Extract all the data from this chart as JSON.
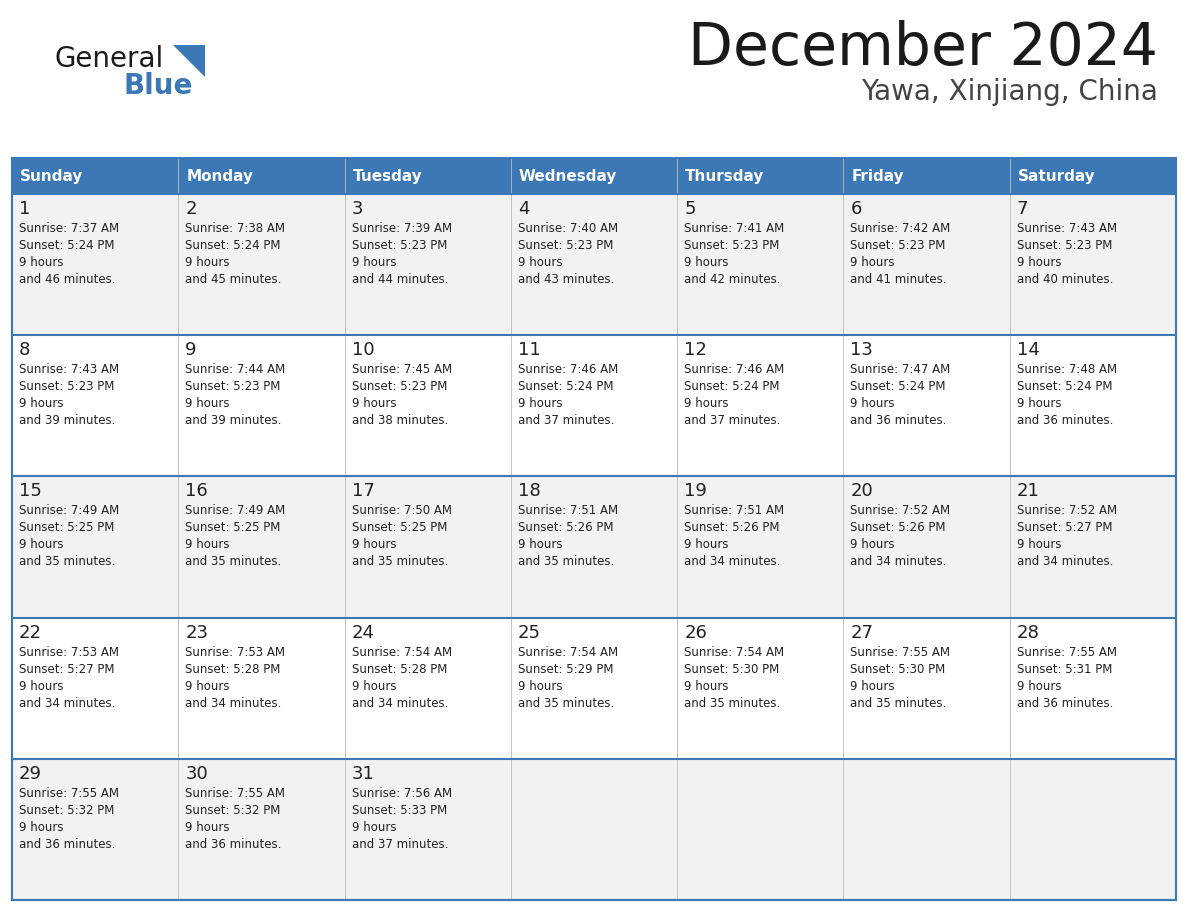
{
  "title": "December 2024",
  "subtitle": "Yawa, Xinjiang, China",
  "header_color": "#3c78b5",
  "header_text_color": "#ffffff",
  "cell_bg_even": "#f2f2f2",
  "cell_bg_odd": "#ffffff",
  "border_color": "#3c78b5",
  "grid_line_color": "#cccccc",
  "text_color": "#222222",
  "day_names": [
    "Sunday",
    "Monday",
    "Tuesday",
    "Wednesday",
    "Thursday",
    "Friday",
    "Saturday"
  ],
  "weeks": [
    [
      {
        "day": 1,
        "sunrise": "7:37 AM",
        "sunset": "5:24 PM",
        "daylight": "9 hours and 46 minutes."
      },
      {
        "day": 2,
        "sunrise": "7:38 AM",
        "sunset": "5:24 PM",
        "daylight": "9 hours and 45 minutes."
      },
      {
        "day": 3,
        "sunrise": "7:39 AM",
        "sunset": "5:23 PM",
        "daylight": "9 hours and 44 minutes."
      },
      {
        "day": 4,
        "sunrise": "7:40 AM",
        "sunset": "5:23 PM",
        "daylight": "9 hours and 43 minutes."
      },
      {
        "day": 5,
        "sunrise": "7:41 AM",
        "sunset": "5:23 PM",
        "daylight": "9 hours and 42 minutes."
      },
      {
        "day": 6,
        "sunrise": "7:42 AM",
        "sunset": "5:23 PM",
        "daylight": "9 hours and 41 minutes."
      },
      {
        "day": 7,
        "sunrise": "7:43 AM",
        "sunset": "5:23 PM",
        "daylight": "9 hours and 40 minutes."
      }
    ],
    [
      {
        "day": 8,
        "sunrise": "7:43 AM",
        "sunset": "5:23 PM",
        "daylight": "9 hours and 39 minutes."
      },
      {
        "day": 9,
        "sunrise": "7:44 AM",
        "sunset": "5:23 PM",
        "daylight": "9 hours and 39 minutes."
      },
      {
        "day": 10,
        "sunrise": "7:45 AM",
        "sunset": "5:23 PM",
        "daylight": "9 hours and 38 minutes."
      },
      {
        "day": 11,
        "sunrise": "7:46 AM",
        "sunset": "5:24 PM",
        "daylight": "9 hours and 37 minutes."
      },
      {
        "day": 12,
        "sunrise": "7:46 AM",
        "sunset": "5:24 PM",
        "daylight": "9 hours and 37 minutes."
      },
      {
        "day": 13,
        "sunrise": "7:47 AM",
        "sunset": "5:24 PM",
        "daylight": "9 hours and 36 minutes."
      },
      {
        "day": 14,
        "sunrise": "7:48 AM",
        "sunset": "5:24 PM",
        "daylight": "9 hours and 36 minutes."
      }
    ],
    [
      {
        "day": 15,
        "sunrise": "7:49 AM",
        "sunset": "5:25 PM",
        "daylight": "9 hours and 35 minutes."
      },
      {
        "day": 16,
        "sunrise": "7:49 AM",
        "sunset": "5:25 PM",
        "daylight": "9 hours and 35 minutes."
      },
      {
        "day": 17,
        "sunrise": "7:50 AM",
        "sunset": "5:25 PM",
        "daylight": "9 hours and 35 minutes."
      },
      {
        "day": 18,
        "sunrise": "7:51 AM",
        "sunset": "5:26 PM",
        "daylight": "9 hours and 35 minutes."
      },
      {
        "day": 19,
        "sunrise": "7:51 AM",
        "sunset": "5:26 PM",
        "daylight": "9 hours and 34 minutes."
      },
      {
        "day": 20,
        "sunrise": "7:52 AM",
        "sunset": "5:26 PM",
        "daylight": "9 hours and 34 minutes."
      },
      {
        "day": 21,
        "sunrise": "7:52 AM",
        "sunset": "5:27 PM",
        "daylight": "9 hours and 34 minutes."
      }
    ],
    [
      {
        "day": 22,
        "sunrise": "7:53 AM",
        "sunset": "5:27 PM",
        "daylight": "9 hours and 34 minutes."
      },
      {
        "day": 23,
        "sunrise": "7:53 AM",
        "sunset": "5:28 PM",
        "daylight": "9 hours and 34 minutes."
      },
      {
        "day": 24,
        "sunrise": "7:54 AM",
        "sunset": "5:28 PM",
        "daylight": "9 hours and 34 minutes."
      },
      {
        "day": 25,
        "sunrise": "7:54 AM",
        "sunset": "5:29 PM",
        "daylight": "9 hours and 35 minutes."
      },
      {
        "day": 26,
        "sunrise": "7:54 AM",
        "sunset": "5:30 PM",
        "daylight": "9 hours and 35 minutes."
      },
      {
        "day": 27,
        "sunrise": "7:55 AM",
        "sunset": "5:30 PM",
        "daylight": "9 hours and 35 minutes."
      },
      {
        "day": 28,
        "sunrise": "7:55 AM",
        "sunset": "5:31 PM",
        "daylight": "9 hours and 36 minutes."
      }
    ],
    [
      {
        "day": 29,
        "sunrise": "7:55 AM",
        "sunset": "5:32 PM",
        "daylight": "9 hours and 36 minutes."
      },
      {
        "day": 30,
        "sunrise": "7:55 AM",
        "sunset": "5:32 PM",
        "daylight": "9 hours and 36 minutes."
      },
      {
        "day": 31,
        "sunrise": "7:56 AM",
        "sunset": "5:33 PM",
        "daylight": "9 hours and 37 minutes."
      },
      null,
      null,
      null,
      null
    ]
  ],
  "logo_general_color": "#1a1a1a",
  "logo_blue_color": "#3c78b5",
  "logo_triangle_color": "#3c78b5",
  "title_color": "#1a1a1a",
  "subtitle_color": "#444444"
}
